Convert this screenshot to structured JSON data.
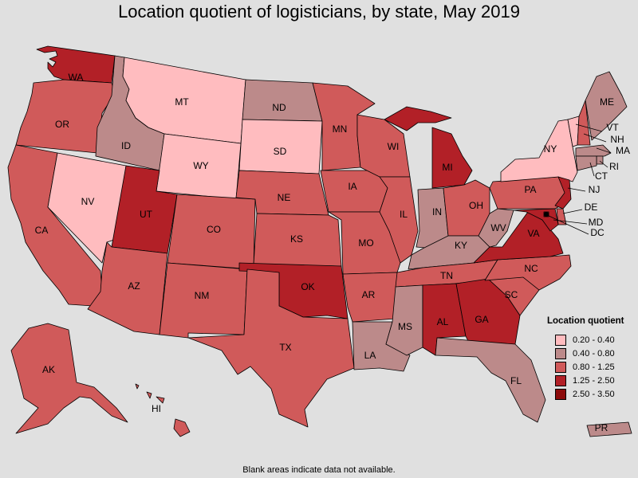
{
  "title": "Location quotient of logisticians, by state, May 2019",
  "note": "Blank areas indicate data not available.",
  "legend": {
    "title": "Location quotient",
    "bins": [
      {
        "label": "0.20 - 0.40",
        "color": "#ffbcbf"
      },
      {
        "label": "0.40 - 0.80",
        "color": "#bc8a8a"
      },
      {
        "label": "0.80 - 1.25",
        "color": "#d05a5a"
      },
      {
        "label": "1.25 - 2.50",
        "color": "#b22027"
      },
      {
        "label": "2.50 - 3.50",
        "color": "#8b0a0a"
      }
    ]
  },
  "states": [
    {
      "abbr": "WA",
      "bin": 3
    },
    {
      "abbr": "OR",
      "bin": 2
    },
    {
      "abbr": "CA",
      "bin": 2
    },
    {
      "abbr": "NV",
      "bin": 0
    },
    {
      "abbr": "ID",
      "bin": 1
    },
    {
      "abbr": "MT",
      "bin": 0
    },
    {
      "abbr": "WY",
      "bin": 0
    },
    {
      "abbr": "UT",
      "bin": 3
    },
    {
      "abbr": "AZ",
      "bin": 2
    },
    {
      "abbr": "CO",
      "bin": 2
    },
    {
      "abbr": "NM",
      "bin": 2
    },
    {
      "abbr": "ND",
      "bin": 1
    },
    {
      "abbr": "SD",
      "bin": 0
    },
    {
      "abbr": "NE",
      "bin": 2
    },
    {
      "abbr": "KS",
      "bin": 2
    },
    {
      "abbr": "OK",
      "bin": 3
    },
    {
      "abbr": "TX",
      "bin": 2
    },
    {
      "abbr": "MN",
      "bin": 2
    },
    {
      "abbr": "IA",
      "bin": 2
    },
    {
      "abbr": "MO",
      "bin": 2
    },
    {
      "abbr": "AR",
      "bin": 2
    },
    {
      "abbr": "LA",
      "bin": 1
    },
    {
      "abbr": "WI",
      "bin": 2
    },
    {
      "abbr": "IL",
      "bin": 2
    },
    {
      "abbr": "MI",
      "bin": 3
    },
    {
      "abbr": "IN",
      "bin": 1
    },
    {
      "abbr": "OH",
      "bin": 2
    },
    {
      "abbr": "KY",
      "bin": 1
    },
    {
      "abbr": "TN",
      "bin": 2
    },
    {
      "abbr": "MS",
      "bin": 1
    },
    {
      "abbr": "AL",
      "bin": 3
    },
    {
      "abbr": "GA",
      "bin": 3
    },
    {
      "abbr": "FL",
      "bin": 1
    },
    {
      "abbr": "SC",
      "bin": 2
    },
    {
      "abbr": "NC",
      "bin": 2
    },
    {
      "abbr": "VA",
      "bin": 3
    },
    {
      "abbr": "WV",
      "bin": 1
    },
    {
      "abbr": "PA",
      "bin": 2
    },
    {
      "abbr": "NY",
      "bin": 0
    },
    {
      "abbr": "VT",
      "bin": 0
    },
    {
      "abbr": "NH",
      "bin": 2
    },
    {
      "abbr": "ME",
      "bin": 1
    },
    {
      "abbr": "MA",
      "bin": 1
    },
    {
      "abbr": "RI",
      "bin": 1
    },
    {
      "abbr": "CT",
      "bin": 1
    },
    {
      "abbr": "NJ",
      "bin": 3
    },
    {
      "abbr": "DE",
      "bin": 2
    },
    {
      "abbr": "MD",
      "bin": 3
    },
    {
      "abbr": "DC",
      "bin": 4
    },
    {
      "abbr": "AK",
      "bin": 2
    },
    {
      "abbr": "HI",
      "bin": 2
    },
    {
      "abbr": "PR",
      "bin": 1
    }
  ]
}
